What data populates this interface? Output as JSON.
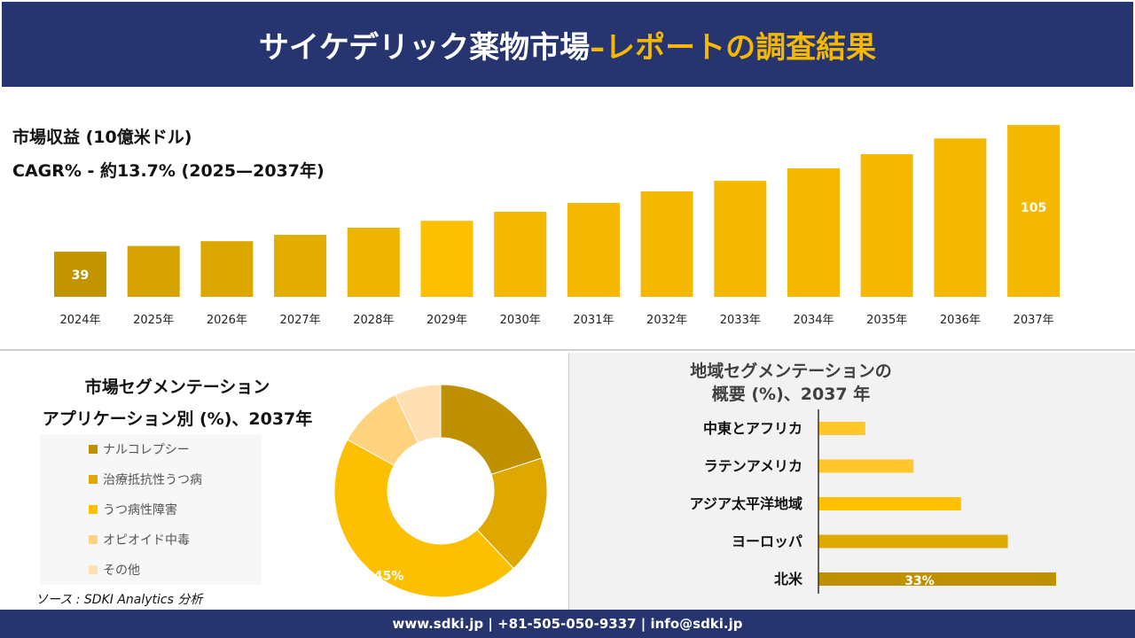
{
  "header": {
    "title_main": "サイケデリック薬物市場 ",
    "title_highlight": "–レポートの調査結果"
  },
  "revenue": {
    "label": "市場収益 (10億米ドル)",
    "cagr": "CAGR% - 約13.7% (2025—2037年)"
  },
  "chart_data": [
    {
      "type": "bar",
      "categories": [
        "2024年",
        "2025年",
        "2026年",
        "2027年",
        "2028年",
        "2029年",
        "2030年",
        "2031年",
        "2032年",
        "2033年",
        "2034年",
        "2035年",
        "2036年",
        "2037年"
      ],
      "values": [
        39,
        42,
        44.5,
        47.8,
        51.5,
        55.1,
        59.8,
        64.4,
        70.4,
        75.9,
        82.4,
        89.8,
        98,
        105
      ],
      "data_labels": {
        "0": "39",
        "13": "105"
      },
      "colors": [
        "#c29400",
        "#d5a200",
        "#dca800",
        "#e3ad00",
        "#ecb400",
        "#fcc000",
        "#f5b800",
        "#f5b800",
        "#f5b800",
        "#f5b800",
        "#f5b800",
        "#f5b800",
        "#f5b800",
        "#f5b800"
      ]
    },
    {
      "type": "pie",
      "title": [
        "市場セグメンテーション",
        "アプリケーション別 (%)、2037年"
      ],
      "categories": [
        "ナルコレプシー",
        "治療抵抗性うつ病",
        "うつ病性障害",
        "オピオイド中毒",
        "その他"
      ],
      "values": [
        20,
        18,
        45,
        10,
        7
      ],
      "data_labels": {
        "2": "45%"
      },
      "colors": [
        "#bf9000",
        "#dfa800",
        "#fcc000",
        "#ffd27f",
        "#ffe0b3"
      ]
    },
    {
      "type": "bar",
      "orientation": "horizontal",
      "title": [
        "地域セグメンテーションの",
        "概要 (%)、2037 年"
      ],
      "categories": [
        "中東とアフリカ",
        "ラテンアメリカ",
        "アジア太平洋地域",
        "ヨーロッパ",
        "北米"
      ],
      "values": [
        6.5,
        13.2,
        19.8,
        26.3,
        33
      ],
      "data_labels": {
        "4": "33%"
      },
      "colors": [
        "#ffc72c",
        "#ffc72c",
        "#ffc000",
        "#deaa00",
        "#bf9000"
      ]
    }
  ],
  "source": "ソース : SDKI Analytics 分析",
  "footer": "www.sdki.jp | +81-505-050-9337 | info@sdki.jp"
}
